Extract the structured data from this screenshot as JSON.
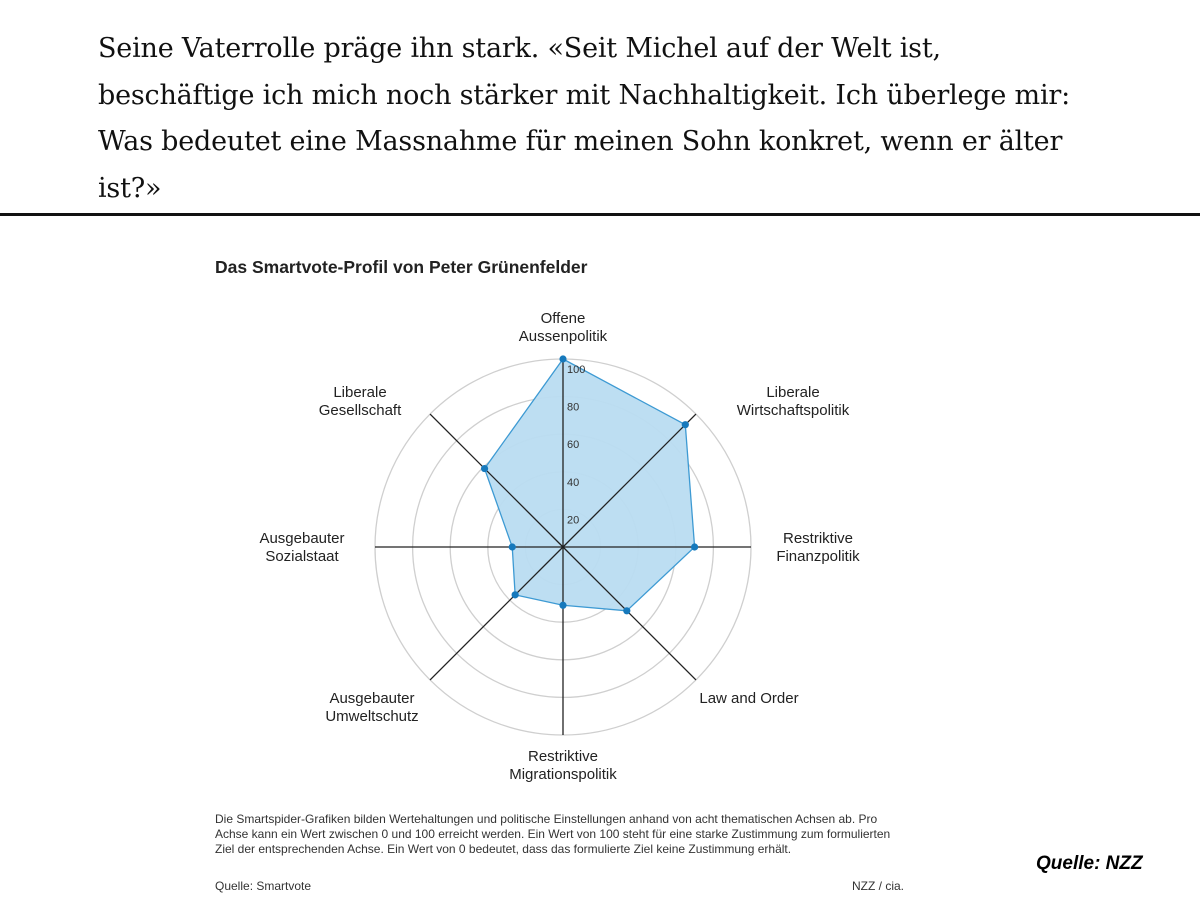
{
  "article": {
    "quote": "Seine Vaterrolle präge ihn stark. «Seit Michel auf der Welt ist, beschäftige ich mich noch stärker mit Nachhaltigkeit. Ich überlege mir: Was bedeutet eine Massnahme für meinen Sohn konkret, wenn er älter ist?»"
  },
  "chart_data": {
    "type": "radar",
    "title": "Das Smartvote-Profil von Peter Grünenfelder",
    "axes": [
      "Offene\nAussenpolitik",
      "Liberale\nWirtschaftspolitik",
      "Restriktive\nFinanzpolitik",
      "Law and Order",
      "Restriktive\nMigrationspolitik",
      "Ausgebauter\nUmweltschutz",
      "Ausgebauter\nSozialstaat",
      "Liberale\nGesellschaft"
    ],
    "values": [
      100,
      92,
      70,
      48,
      31,
      36,
      27,
      59
    ],
    "rlim": [
      0,
      100
    ],
    "rticks": [
      20,
      40,
      60,
      80,
      100
    ],
    "grid": true,
    "colors": {
      "fill": "#b9dcf1",
      "line": "#3d9ad3",
      "point": "#1679bc",
      "axis": "#222222",
      "grid": "#cfcfcf"
    },
    "note": "Die Smartspider-Grafiken bilden Wertehaltungen und politische Einstellungen anhand von acht thematischen Achsen ab. Pro Achse kann ein Wert zwischen 0 und 100 erreicht werden. Ein Wert von 100 steht für eine starke Zustimmung zum formulierten Ziel der entsprechenden Achse. Ein Wert von 0 bedeutet, dass das formulierte Ziel keine Zustimmung erhält.",
    "source": "Quelle: Smartvote",
    "credit": "NZZ / cia."
  },
  "image_credit": "Quelle: NZZ"
}
